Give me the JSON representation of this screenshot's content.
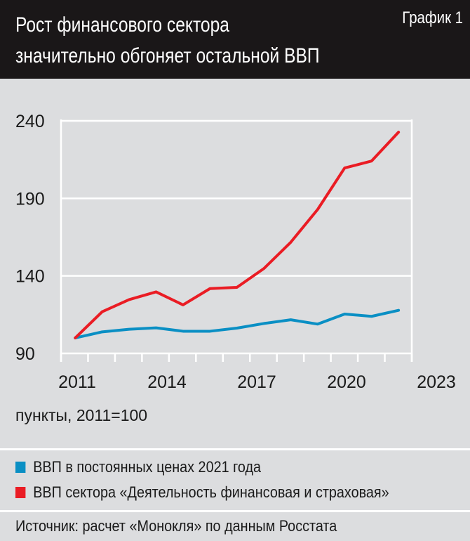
{
  "header": {
    "title_line1": "Рост финансового сектора",
    "title_line2": "значительно обгоняет остальной ВВП",
    "label": "График 1"
  },
  "chart_data": {
    "type": "line",
    "x": [
      2011,
      2012,
      2013,
      2014,
      2015,
      2016,
      2017,
      2018,
      2019,
      2020,
      2021,
      2022,
      2023
    ],
    "x_tick_labels": [
      "2011",
      "2014",
      "2017",
      "2020",
      "2023"
    ],
    "y_tick_labels": [
      "240",
      "190",
      "140",
      "90"
    ],
    "ylim": [
      90,
      240
    ],
    "grid": true,
    "ylabel": "пункты, 2011=100",
    "legend_position": "bottom",
    "series": [
      {
        "name": "ВВП в постоянных ценах 2021 года",
        "color": "#0a8fc4",
        "values": [
          100,
          103.9,
          105.6,
          106.5,
          104.3,
          104.3,
          106.3,
          109.3,
          111.7,
          108.9,
          115.4,
          113.9,
          117.8
        ]
      },
      {
        "name": "ВВП сектора «Деятельность финансовая и страховая»",
        "color": "#ea1c24",
        "values": [
          100,
          116.9,
          124.7,
          129.7,
          121.3,
          131.8,
          132.6,
          144.7,
          161.7,
          182.9,
          209.6,
          214.1,
          232.7
        ]
      }
    ]
  },
  "source": "Источник: расчет «Монокля» по данным Росстата"
}
